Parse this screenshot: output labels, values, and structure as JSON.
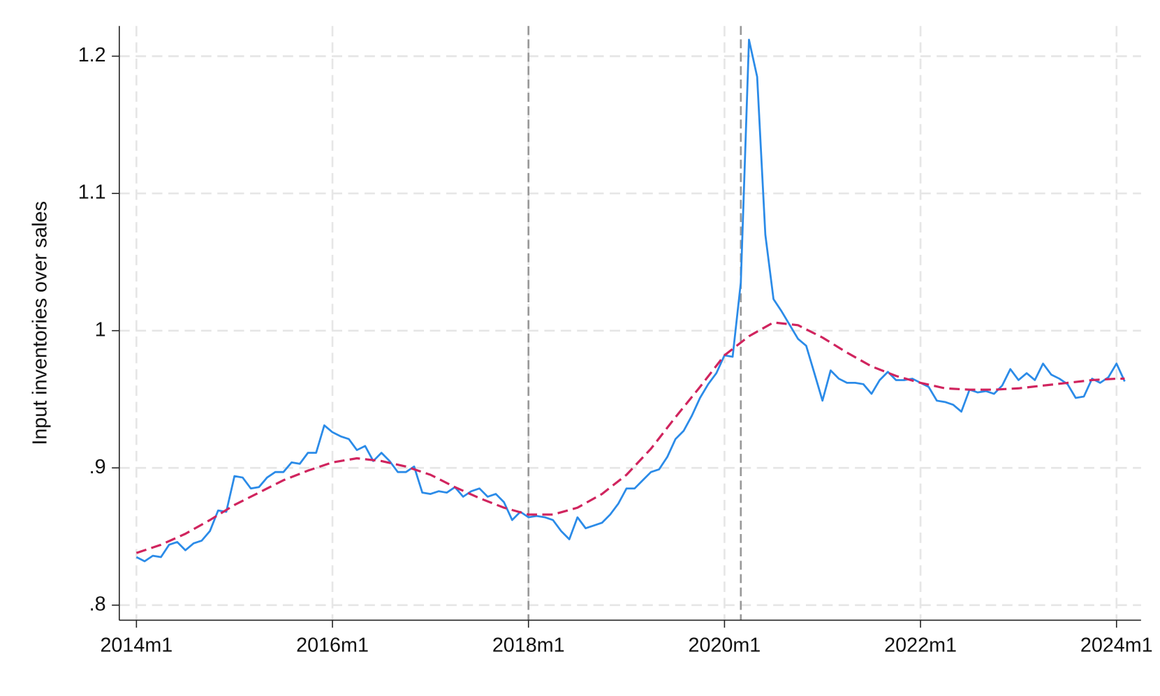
{
  "chart_data": {
    "type": "line",
    "y_label": "Input inventories over sales",
    "x": [
      648,
      649,
      650,
      651,
      652,
      653,
      654,
      655,
      656,
      657,
      658,
      659,
      660,
      661,
      662,
      663,
      664,
      665,
      666,
      667,
      668,
      669,
      670,
      671,
      672,
      673,
      674,
      675,
      676,
      677,
      678,
      679,
      680,
      681,
      682,
      683,
      684,
      685,
      686,
      687,
      688,
      689,
      690,
      691,
      692,
      693,
      694,
      695,
      696,
      697,
      698,
      699,
      700,
      701,
      702,
      703,
      704,
      705,
      706,
      707,
      708,
      709,
      710,
      711,
      712,
      713,
      714,
      715,
      716,
      717,
      718,
      719,
      720,
      721,
      722,
      723,
      724,
      725,
      726,
      727,
      728,
      729,
      730,
      731,
      732,
      733,
      734,
      735,
      736,
      737,
      738,
      739,
      740,
      741,
      742,
      743,
      744,
      745,
      746,
      747,
      748,
      749,
      750,
      751,
      752,
      753,
      754,
      755,
      756,
      757,
      758,
      759,
      760,
      761,
      762,
      763,
      764,
      765,
      766,
      767,
      768,
      769
    ],
    "series": [
      {
        "color": "#2b8be8",
        "dashed": false,
        "values": [
          0.835,
          0.832,
          0.836,
          0.835,
          0.844,
          0.846,
          0.84,
          0.845,
          0.847,
          0.854,
          0.869,
          0.868,
          0.894,
          0.893,
          0.885,
          0.886,
          0.893,
          0.897,
          0.897,
          0.904,
          0.903,
          0.911,
          0.911,
          0.931,
          0.926,
          0.923,
          0.921,
          0.913,
          0.916,
          0.905,
          0.911,
          0.905,
          0.897,
          0.897,
          0.901,
          0.882,
          0.881,
          0.883,
          0.882,
          0.886,
          0.879,
          0.883,
          0.885,
          0.879,
          0.881,
          0.875,
          0.862,
          0.868,
          0.864,
          0.865,
          0.864,
          0.862,
          0.854,
          0.848,
          0.864,
          0.856,
          0.858,
          0.86,
          0.866,
          0.874,
          0.885,
          0.885,
          0.891,
          0.897,
          0.899,
          0.908,
          0.921,
          0.927,
          0.938,
          0.951,
          0.961,
          0.969,
          0.982,
          0.981,
          1.035,
          1.212,
          1.185,
          1.07,
          1.023,
          1.014,
          1.004,
          0.994,
          0.989,
          0.969,
          0.949,
          0.971,
          0.965,
          0.962,
          0.962,
          0.961,
          0.954,
          0.964,
          0.97,
          0.964,
          0.964,
          0.965,
          0.962,
          0.959,
          0.949,
          0.948,
          0.946,
          0.941,
          0.957,
          0.955,
          0.956,
          0.954,
          0.96,
          0.972,
          0.964,
          0.969,
          0.964,
          0.976,
          0.968,
          0.965,
          0.961,
          0.951,
          0.952,
          0.965,
          0.962,
          0.966,
          0.976,
          0.963
        ]
      },
      {
        "color": "#d0245e",
        "dashed": true,
        "x": [
          648,
          651,
          654,
          657,
          660,
          663,
          666,
          669,
          672,
          675,
          678,
          681,
          684,
          687,
          690,
          693,
          696,
          699,
          702,
          705,
          708,
          711,
          714,
          717,
          720,
          723,
          726,
          729,
          732,
          735,
          738,
          741,
          744,
          747,
          750,
          753,
          756,
          759,
          762,
          765,
          768,
          769
        ],
        "values": [
          0.838,
          0.844,
          0.852,
          0.862,
          0.873,
          0.882,
          0.891,
          0.898,
          0.904,
          0.907,
          0.905,
          0.901,
          0.895,
          0.886,
          0.878,
          0.871,
          0.866,
          0.866,
          0.871,
          0.881,
          0.895,
          0.914,
          0.937,
          0.959,
          0.982,
          0.996,
          1.006,
          1.004,
          0.995,
          0.984,
          0.974,
          0.967,
          0.962,
          0.958,
          0.957,
          0.957,
          0.958,
          0.96,
          0.962,
          0.964,
          0.965,
          0.965
        ]
      }
    ],
    "reference_lines_x": [
      696,
      722
    ],
    "xlim": [
      645.9,
      771
    ],
    "xticks": [
      {
        "value": 648,
        "label": "2014m1"
      },
      {
        "value": 672,
        "label": "2016m1"
      },
      {
        "value": 696,
        "label": "2018m1"
      },
      {
        "value": 720,
        "label": "2020m1"
      },
      {
        "value": 744,
        "label": "2022m1"
      },
      {
        "value": 768,
        "label": "2024m1"
      }
    ],
    "ylim": [
      0.789,
      1.222
    ],
    "yticks": [
      {
        "value": 0.8,
        "label": ".8"
      },
      {
        "value": 0.9,
        "label": ".9"
      },
      1,
      1.1,
      1.2
    ],
    "grid": true
  }
}
